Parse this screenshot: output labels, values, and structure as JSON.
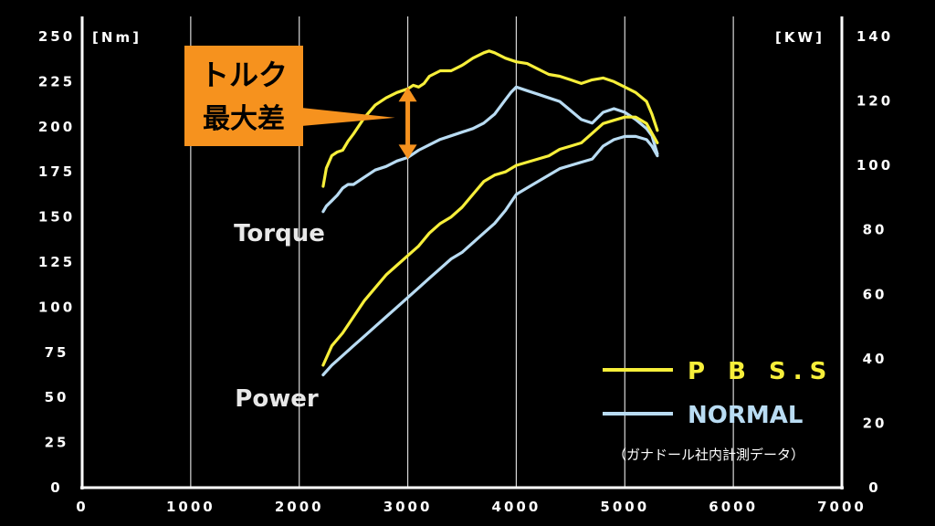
{
  "chart_data": {
    "type": "line",
    "x_range": [
      0,
      7000
    ],
    "x_ticks": [
      "0",
      "1000",
      "2000",
      "3000",
      "4000",
      "5000",
      "6000",
      "7000"
    ],
    "y_left": {
      "unit": "[Nm]",
      "range": [
        0,
        250
      ],
      "ticks": [
        "0",
        "25",
        "50",
        "75",
        "100",
        "125",
        "150",
        "175",
        "200",
        "225",
        "250"
      ]
    },
    "y_right": {
      "unit": "[KW]",
      "range": [
        0,
        140
      ],
      "ticks": [
        "0",
        "20",
        "40",
        "60",
        "80",
        "100",
        "120",
        "140"
      ]
    },
    "grid": "vertical",
    "legend_position": "bottom-right",
    "series": [
      {
        "name": "P B S.S",
        "group": "Torque",
        "axis": "left",
        "color": "#f7ef3a",
        "points": [
          [
            2220,
            167
          ],
          [
            2250,
            177
          ],
          [
            2300,
            184
          ],
          [
            2350,
            186
          ],
          [
            2400,
            187
          ],
          [
            2450,
            192
          ],
          [
            2500,
            196
          ],
          [
            2600,
            205
          ],
          [
            2700,
            212
          ],
          [
            2800,
            216
          ],
          [
            2900,
            219
          ],
          [
            3000,
            221
          ],
          [
            3050,
            223
          ],
          [
            3100,
            222
          ],
          [
            3150,
            224
          ],
          [
            3200,
            228
          ],
          [
            3300,
            231
          ],
          [
            3400,
            231
          ],
          [
            3500,
            234
          ],
          [
            3600,
            238
          ],
          [
            3700,
            241
          ],
          [
            3750,
            242
          ],
          [
            3800,
            241
          ],
          [
            3900,
            238
          ],
          [
            4000,
            236
          ],
          [
            4100,
            235
          ],
          [
            4200,
            232
          ],
          [
            4300,
            229
          ],
          [
            4400,
            228
          ],
          [
            4500,
            226
          ],
          [
            4600,
            224
          ],
          [
            4700,
            226
          ],
          [
            4800,
            227
          ],
          [
            4900,
            225
          ],
          [
            5000,
            222
          ],
          [
            5100,
            219
          ],
          [
            5200,
            214
          ],
          [
            5250,
            207
          ],
          [
            5300,
            198
          ]
        ]
      },
      {
        "name": "NORMAL",
        "group": "Torque",
        "axis": "left",
        "color": "#b9dcf3",
        "points": [
          [
            2220,
            153
          ],
          [
            2250,
            156
          ],
          [
            2300,
            159
          ],
          [
            2350,
            162
          ],
          [
            2400,
            166
          ],
          [
            2450,
            168
          ],
          [
            2500,
            168
          ],
          [
            2600,
            172
          ],
          [
            2700,
            176
          ],
          [
            2800,
            178
          ],
          [
            2900,
            181
          ],
          [
            3000,
            183
          ],
          [
            3100,
            187
          ],
          [
            3200,
            190
          ],
          [
            3300,
            193
          ],
          [
            3400,
            195
          ],
          [
            3500,
            197
          ],
          [
            3600,
            199
          ],
          [
            3700,
            202
          ],
          [
            3800,
            207
          ],
          [
            3900,
            215
          ],
          [
            3950,
            219
          ],
          [
            4000,
            222
          ],
          [
            4100,
            220
          ],
          [
            4200,
            218
          ],
          [
            4300,
            216
          ],
          [
            4400,
            214
          ],
          [
            4500,
            209
          ],
          [
            4600,
            204
          ],
          [
            4700,
            202
          ],
          [
            4800,
            208
          ],
          [
            4900,
            210
          ],
          [
            5000,
            208
          ],
          [
            5100,
            204
          ],
          [
            5200,
            199
          ],
          [
            5250,
            195
          ],
          [
            5300,
            185
          ]
        ]
      },
      {
        "name": "P B S.S",
        "group": "Power",
        "axis": "right",
        "color": "#f7ef3a",
        "points": [
          [
            2220,
            38
          ],
          [
            2300,
            44
          ],
          [
            2400,
            48
          ],
          [
            2500,
            53
          ],
          [
            2600,
            58
          ],
          [
            2700,
            62
          ],
          [
            2800,
            66
          ],
          [
            2900,
            69
          ],
          [
            3000,
            72
          ],
          [
            3100,
            75
          ],
          [
            3200,
            79
          ],
          [
            3300,
            82
          ],
          [
            3400,
            84
          ],
          [
            3500,
            87
          ],
          [
            3600,
            91
          ],
          [
            3700,
            95
          ],
          [
            3800,
            97
          ],
          [
            3900,
            98
          ],
          [
            4000,
            100
          ],
          [
            4100,
            101
          ],
          [
            4200,
            102
          ],
          [
            4300,
            103
          ],
          [
            4400,
            105
          ],
          [
            4500,
            106
          ],
          [
            4600,
            107
          ],
          [
            4700,
            110
          ],
          [
            4800,
            113
          ],
          [
            4900,
            114
          ],
          [
            5000,
            115
          ],
          [
            5100,
            115
          ],
          [
            5200,
            113
          ],
          [
            5250,
            110
          ],
          [
            5300,
            107
          ]
        ]
      },
      {
        "name": "NORMAL",
        "group": "Power",
        "axis": "right",
        "color": "#b9dcf3",
        "points": [
          [
            2220,
            35
          ],
          [
            2300,
            38
          ],
          [
            2400,
            41
          ],
          [
            2500,
            44
          ],
          [
            2600,
            47
          ],
          [
            2700,
            50
          ],
          [
            2800,
            53
          ],
          [
            2900,
            56
          ],
          [
            3000,
            59
          ],
          [
            3100,
            62
          ],
          [
            3200,
            65
          ],
          [
            3300,
            68
          ],
          [
            3400,
            71
          ],
          [
            3500,
            73
          ],
          [
            3600,
            76
          ],
          [
            3700,
            79
          ],
          [
            3800,
            82
          ],
          [
            3900,
            86
          ],
          [
            4000,
            91
          ],
          [
            4100,
            93
          ],
          [
            4200,
            95
          ],
          [
            4300,
            97
          ],
          [
            4400,
            99
          ],
          [
            4500,
            100
          ],
          [
            4600,
            101
          ],
          [
            4700,
            102
          ],
          [
            4800,
            106
          ],
          [
            4900,
            108
          ],
          [
            5000,
            109
          ],
          [
            5100,
            109
          ],
          [
            5200,
            108
          ],
          [
            5250,
            106
          ],
          [
            5300,
            103
          ]
        ]
      }
    ],
    "annotations": {
      "torque_label": "Torque",
      "power_label": "Power",
      "callout": {
        "line1": "トルク",
        "line2": "最大差",
        "color": "#f6921e",
        "arrow_x": 3000,
        "arrow_from": 183,
        "arrow_to": 221
      },
      "note": "（ガナドール社内計測データ）"
    },
    "legend": [
      {
        "label": "P B S.S",
        "color": "#f7ef3a"
      },
      {
        "label": "NORMAL",
        "color": "#b9dcf3"
      }
    ]
  }
}
